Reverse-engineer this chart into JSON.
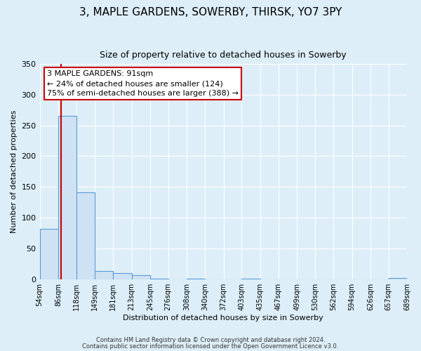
{
  "title": "3, MAPLE GARDENS, SOWERBY, THIRSK, YO7 3PY",
  "subtitle": "Size of property relative to detached houses in Sowerby",
  "xlabel": "Distribution of detached houses by size in Sowerby",
  "ylabel": "Number of detached properties",
  "bin_edges": [
    54,
    86,
    118,
    149,
    181,
    213,
    245,
    276,
    308,
    340,
    372,
    403,
    435,
    467,
    499,
    530,
    562,
    594,
    626,
    657,
    689
  ],
  "bin_heights": [
    82,
    265,
    141,
    13,
    10,
    7,
    1,
    0,
    1,
    0,
    0,
    1,
    0,
    0,
    0,
    0,
    0,
    0,
    0,
    2
  ],
  "bar_color": "#cfe2f3",
  "bar_edge_color": "#5b9bd5",
  "red_line_x": 91,
  "annotation_line1": "3 MAPLE GARDENS: 91sqm",
  "annotation_line2": "← 24% of detached houses are smaller (124)",
  "annotation_line3": "75% of semi-detached houses are larger (388) →",
  "annotation_box_color": "#ffffff",
  "annotation_box_edge_color": "#cc0000",
  "ylim": [
    0,
    350
  ],
  "yticks": [
    0,
    50,
    100,
    150,
    200,
    250,
    300,
    350
  ],
  "footer_line1": "Contains HM Land Registry data © Crown copyright and database right 2024.",
  "footer_line2": "Contains public sector information licensed under the Open Government Licence v3.0.",
  "background_color": "#ddeef8",
  "plot_bg_color": "#ddeef8",
  "grid_color": "#ffffff",
  "tick_labels": [
    "54sqm",
    "86sqm",
    "118sqm",
    "149sqm",
    "181sqm",
    "213sqm",
    "245sqm",
    "276sqm",
    "308sqm",
    "340sqm",
    "372sqm",
    "403sqm",
    "435sqm",
    "467sqm",
    "499sqm",
    "530sqm",
    "562sqm",
    "594sqm",
    "626sqm",
    "657sqm",
    "689sqm"
  ],
  "title_fontsize": 11,
  "subtitle_fontsize": 9,
  "ylabel_fontsize": 8,
  "xlabel_fontsize": 8
}
